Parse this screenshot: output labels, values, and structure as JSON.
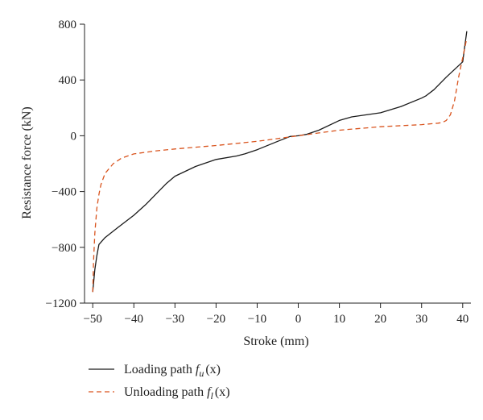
{
  "chart_data": {
    "type": "line",
    "title": "",
    "xlabel": "Stroke (mm)",
    "ylabel": "Resistance force (kN)",
    "xlim": [
      -52,
      42
    ],
    "ylim": [
      -1200,
      800
    ],
    "xticks": [
      -50,
      -40,
      -30,
      -20,
      -10,
      0,
      10,
      20,
      30,
      40
    ],
    "xtick_labels": [
      "−50",
      "−40",
      "−30",
      "−20",
      "−10",
      "0",
      "10",
      "20",
      "30",
      "40"
    ],
    "yticks": [
      -1200,
      -800,
      -400,
      0,
      400,
      800
    ],
    "ytick_labels": [
      "−1200",
      "−800",
      "−400",
      "0",
      "400",
      "800"
    ],
    "grid": false,
    "legend_position": "bottom-left",
    "series": [
      {
        "name": "Loading path",
        "name_func": "f",
        "name_sub": "u",
        "name_arg": "(x)",
        "color": "#1a1a1a",
        "dash": "solid",
        "points": [
          [
            -50,
            -1120
          ],
          [
            -49.5,
            -960
          ],
          [
            -49,
            -860
          ],
          [
            -48.5,
            -780
          ],
          [
            -47,
            -730
          ],
          [
            -44,
            -660
          ],
          [
            -40,
            -570
          ],
          [
            -37,
            -490
          ],
          [
            -34,
            -400
          ],
          [
            -32,
            -340
          ],
          [
            -30,
            -290
          ],
          [
            -25,
            -220
          ],
          [
            -20,
            -170
          ],
          [
            -15,
            -145
          ],
          [
            -13,
            -130
          ],
          [
            -10,
            -100
          ],
          [
            -5,
            -40
          ],
          [
            -2,
            -5
          ],
          [
            0,
            0
          ],
          [
            2,
            10
          ],
          [
            5,
            40
          ],
          [
            10,
            110
          ],
          [
            13,
            135
          ],
          [
            20,
            165
          ],
          [
            25,
            210
          ],
          [
            30,
            270
          ],
          [
            31,
            285
          ],
          [
            33,
            330
          ],
          [
            36,
            420
          ],
          [
            40,
            530
          ],
          [
            40.5,
            640
          ],
          [
            41,
            750
          ]
        ]
      },
      {
        "name": "Unloading path",
        "name_func": "f",
        "name_sub": "l",
        "name_arg": "(x)",
        "color": "#d9541e",
        "dash": "dashed",
        "points": [
          [
            -50,
            -1120
          ],
          [
            -49.8,
            -900
          ],
          [
            -49.5,
            -700
          ],
          [
            -49,
            -520
          ],
          [
            -48.5,
            -420
          ],
          [
            -48,
            -350
          ],
          [
            -47,
            -270
          ],
          [
            -45,
            -200
          ],
          [
            -43,
            -160
          ],
          [
            -40,
            -130
          ],
          [
            -35,
            -110
          ],
          [
            -30,
            -95
          ],
          [
            -20,
            -70
          ],
          [
            -10,
            -40
          ],
          [
            -5,
            -20
          ],
          [
            0,
            0
          ],
          [
            5,
            20
          ],
          [
            10,
            40
          ],
          [
            20,
            65
          ],
          [
            30,
            80
          ],
          [
            34,
            90
          ],
          [
            35,
            95
          ],
          [
            36,
            110
          ],
          [
            37,
            150
          ],
          [
            38,
            250
          ],
          [
            39,
            420
          ],
          [
            40,
            560
          ],
          [
            41,
            700
          ]
        ]
      }
    ]
  }
}
